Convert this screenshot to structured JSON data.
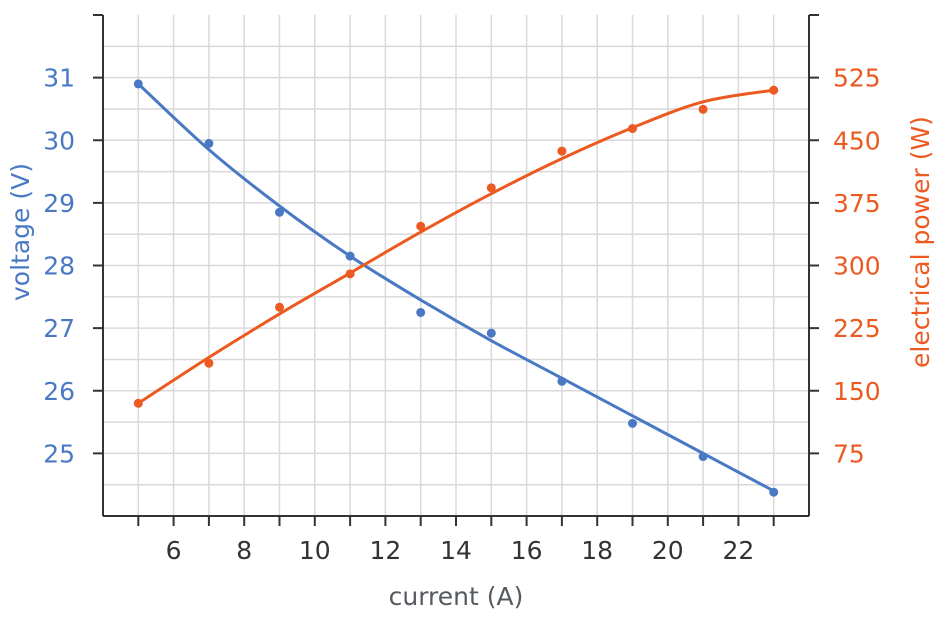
{
  "chart_data": {
    "type": "line",
    "xlabel": "current (A)",
    "ylabel_left": "voltage (V)",
    "ylabel_right": "electrical power (W)",
    "x_ticks": [
      6,
      8,
      10,
      12,
      14,
      16,
      18,
      20,
      22
    ],
    "y_left_ticks": [
      25,
      26,
      27,
      28,
      29,
      30,
      31
    ],
    "y_right_ticks": [
      75,
      150,
      225,
      300,
      375,
      450,
      525
    ],
    "xlim": [
      4,
      24
    ],
    "ylim_left": [
      24.0,
      32.0
    ],
    "ylim_right": [
      0,
      600
    ],
    "grid": true,
    "colors": {
      "voltage": "#4a79c4",
      "power": "#ec5a22",
      "axis": "#333333",
      "grid": "#d9d9d9",
      "xlabel": "#555a60"
    },
    "series": [
      {
        "axis": "left",
        "points": [
          {
            "x": 5,
            "y": 30.9
          },
          {
            "x": 7,
            "y": 29.95
          },
          {
            "x": 9,
            "y": 28.85
          },
          {
            "x": 11,
            "y": 28.15
          },
          {
            "x": 13,
            "y": 27.25
          },
          {
            "x": 15,
            "y": 26.92
          },
          {
            "x": 17,
            "y": 26.15
          },
          {
            "x": 19,
            "y": 25.48
          },
          {
            "x": 21,
            "y": 24.95
          },
          {
            "x": 23,
            "y": 24.38
          }
        ],
        "fit": [
          {
            "x": 5,
            "y": 30.9
          },
          {
            "x": 7,
            "y": 29.85
          },
          {
            "x": 9,
            "y": 28.95
          },
          {
            "x": 11,
            "y": 28.15
          },
          {
            "x": 13,
            "y": 27.45
          },
          {
            "x": 15,
            "y": 26.8
          },
          {
            "x": 17,
            "y": 26.2
          },
          {
            "x": 19,
            "y": 25.6
          },
          {
            "x": 21,
            "y": 25.0
          },
          {
            "x": 23,
            "y": 24.4
          }
        ]
      },
      {
        "axis": "right",
        "points": [
          {
            "x": 5,
            "y": 135
          },
          {
            "x": 7,
            "y": 183
          },
          {
            "x": 9,
            "y": 250
          },
          {
            "x": 11,
            "y": 290
          },
          {
            "x": 13,
            "y": 347
          },
          {
            "x": 15,
            "y": 393
          },
          {
            "x": 17,
            "y": 437
          },
          {
            "x": 19,
            "y": 464
          },
          {
            "x": 21,
            "y": 487
          },
          {
            "x": 23,
            "y": 510
          }
        ],
        "fit": [
          {
            "x": 5,
            "y": 135
          },
          {
            "x": 7,
            "y": 190
          },
          {
            "x": 9,
            "y": 242
          },
          {
            "x": 11,
            "y": 291
          },
          {
            "x": 13,
            "y": 340
          },
          {
            "x": 15,
            "y": 386
          },
          {
            "x": 17,
            "y": 428
          },
          {
            "x": 19,
            "y": 465
          },
          {
            "x": 21,
            "y": 496
          },
          {
            "x": 23,
            "y": 510
          }
        ]
      }
    ]
  }
}
